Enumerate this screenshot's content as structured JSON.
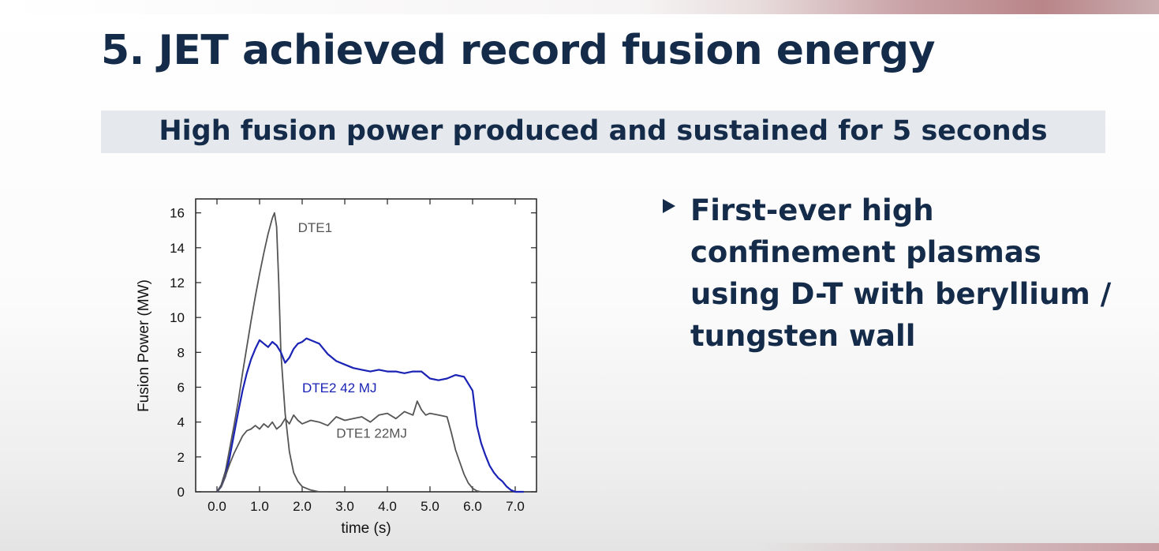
{
  "slide": {
    "title": "5. JET achieved record fusion energy",
    "subtitle": "High fusion power produced and sustained for 5 seconds",
    "bullet": "First-ever high confinement plasmas using D-T with beryllium / tungsten wall"
  },
  "chart_data": {
    "type": "line",
    "title": "",
    "xlabel": "time (s)",
    "ylabel": "Fusion Power (MW)",
    "xlim": [
      -0.5,
      7.5
    ],
    "ylim": [
      0,
      16.8
    ],
    "xticks": [
      0.0,
      1.0,
      2.0,
      3.0,
      4.0,
      5.0,
      6.0,
      7.0
    ],
    "xtick_labels": [
      "0.0",
      "1.0",
      "2.0",
      "3.0",
      "4.0",
      "5.0",
      "6.0",
      "7.0"
    ],
    "yticks": [
      0,
      2,
      4,
      6,
      8,
      10,
      12,
      14,
      16
    ],
    "ytick_labels": [
      "0",
      "2",
      "4",
      "6",
      "8",
      "10",
      "12",
      "14",
      "16"
    ],
    "grid": false,
    "series": [
      {
        "name": "DTE1",
        "color": "#555555",
        "x": [
          0.0,
          0.1,
          0.2,
          0.3,
          0.4,
          0.5,
          0.6,
          0.7,
          0.8,
          0.9,
          1.0,
          1.1,
          1.2,
          1.3,
          1.35,
          1.4,
          1.45,
          1.5,
          1.6,
          1.7,
          1.8,
          1.9,
          2.0,
          2.2,
          2.4,
          2.6
        ],
        "y": [
          0.0,
          0.4,
          1.2,
          2.5,
          3.8,
          5.2,
          6.8,
          8.3,
          9.8,
          11.2,
          12.5,
          13.7,
          14.8,
          15.7,
          16.0,
          15.2,
          12.0,
          8.0,
          4.5,
          2.3,
          1.1,
          0.6,
          0.3,
          0.1,
          0.0,
          0.0
        ]
      },
      {
        "name": "DTE2 42 MJ",
        "color": "#1a23b4",
        "x": [
          0.0,
          0.1,
          0.2,
          0.3,
          0.4,
          0.5,
          0.6,
          0.7,
          0.8,
          0.9,
          1.0,
          1.1,
          1.2,
          1.3,
          1.4,
          1.5,
          1.6,
          1.7,
          1.8,
          1.9,
          2.0,
          2.1,
          2.2,
          2.3,
          2.4,
          2.5,
          2.6,
          2.8,
          3.0,
          3.2,
          3.4,
          3.6,
          3.8,
          4.0,
          4.2,
          4.4,
          4.6,
          4.8,
          5.0,
          5.2,
          5.4,
          5.6,
          5.8,
          5.9,
          6.0,
          6.1,
          6.2,
          6.3,
          6.4,
          6.5,
          6.6,
          6.7,
          6.8,
          6.9,
          7.0,
          7.2
        ],
        "y": [
          0.0,
          0.3,
          0.9,
          2.0,
          3.3,
          4.6,
          5.8,
          6.8,
          7.6,
          8.2,
          8.7,
          8.5,
          8.3,
          8.6,
          8.4,
          8.0,
          7.4,
          7.7,
          8.2,
          8.5,
          8.6,
          8.8,
          8.7,
          8.6,
          8.5,
          8.2,
          7.9,
          7.5,
          7.3,
          7.1,
          7.0,
          6.9,
          7.0,
          6.9,
          6.9,
          6.8,
          6.9,
          6.9,
          6.5,
          6.4,
          6.5,
          6.7,
          6.6,
          6.2,
          5.8,
          3.8,
          2.8,
          2.1,
          1.5,
          1.1,
          0.8,
          0.6,
          0.3,
          0.1,
          0.0,
          0.0
        ]
      },
      {
        "name": "DTE1  22MJ",
        "color": "#555555",
        "x": [
          0.0,
          0.1,
          0.2,
          0.3,
          0.4,
          0.5,
          0.6,
          0.7,
          0.8,
          0.9,
          1.0,
          1.1,
          1.2,
          1.3,
          1.4,
          1.5,
          1.6,
          1.7,
          1.8,
          1.9,
          2.0,
          2.2,
          2.4,
          2.6,
          2.8,
          3.0,
          3.2,
          3.4,
          3.6,
          3.8,
          4.0,
          4.2,
          4.4,
          4.6,
          4.7,
          4.8,
          4.9,
          5.0,
          5.2,
          5.4,
          5.5,
          5.6,
          5.7,
          5.8,
          5.9,
          6.0,
          6.1,
          6.2
        ],
        "y": [
          0.0,
          0.3,
          0.9,
          1.6,
          2.2,
          2.7,
          3.2,
          3.5,
          3.6,
          3.8,
          3.6,
          3.9,
          3.7,
          4.0,
          3.6,
          3.8,
          4.2,
          3.9,
          4.4,
          4.1,
          3.9,
          4.1,
          4.0,
          3.8,
          4.3,
          4.1,
          4.2,
          4.3,
          4.0,
          4.4,
          4.5,
          4.2,
          4.6,
          4.4,
          5.2,
          4.7,
          4.4,
          4.5,
          4.4,
          4.3,
          3.4,
          2.4,
          1.7,
          1.0,
          0.5,
          0.2,
          0.05,
          0.0
        ]
      }
    ],
    "annotations": [
      {
        "text": "DTE1",
        "x": 1.9,
        "y": 14.9,
        "color": "#555555"
      },
      {
        "text": "DTE2 42 MJ",
        "x": 2.0,
        "y": 5.7,
        "color": "#1a23b4"
      },
      {
        "text": "DTE1  22MJ",
        "x": 2.8,
        "y": 3.1,
        "color": "#555555"
      }
    ]
  }
}
